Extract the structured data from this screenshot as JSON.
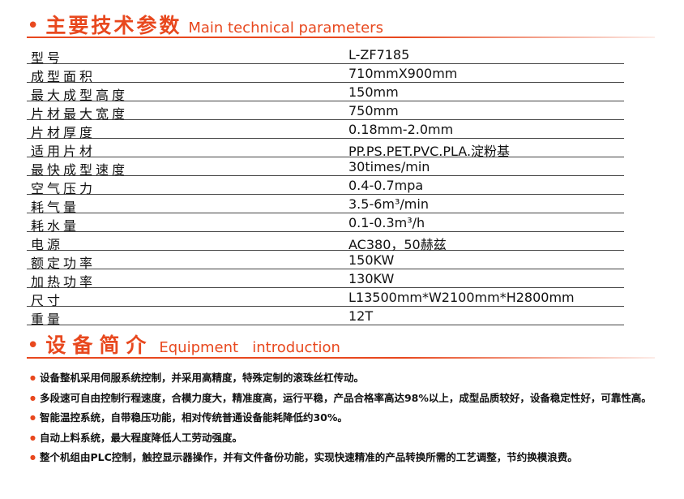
{
  "heading1": {
    "zh": "主要技术参数",
    "en": "Main technical parameters"
  },
  "specs": [
    [
      "型号",
      "L-ZF7185"
    ],
    [
      "成型面积",
      "710mmX900mm"
    ],
    [
      "最大成型高度",
      "150mm"
    ],
    [
      "片材最大宽度",
      "750mm"
    ],
    [
      "片材厚度",
      "0.18mm-2.0mm"
    ],
    [
      "适用片材",
      "PP.PS.PET.PVC.PLA.淀粉基"
    ],
    [
      "最快成型速度",
      "30times/min"
    ],
    [
      "空气压力",
      "0.4-0.7mpa"
    ],
    [
      "耗气量",
      "3.5-6m³/min"
    ],
    [
      "耗水量",
      "0.1-0.3m³/h"
    ],
    [
      "电源",
      "AC380，50赫兹"
    ],
    [
      "额定功率",
      "150KW"
    ],
    [
      "加热功率",
      "130KW"
    ],
    [
      "尺寸",
      "L13500mm*W2100mm*H2800mm"
    ],
    [
      "重量",
      "12T"
    ]
  ],
  "heading2": {
    "zh": "设备简介",
    "en": "Equipment   introduction"
  },
  "bullets": [
    "设备整机采用伺服系统控制，并采用高精度，特殊定制的滚珠丝杠传动。",
    "多段速可自由控制行程速度，合模力度大，精准度高，运行平稳，产品合格率高达98%以上，成型品质较好，设备稳定性好，可靠性高。",
    "智能温控系统，自带稳压功能，相对传统普通设备能耗降低约30%。",
    "自动上料系统，最大程度降低人工劳动强度。",
    "整个机组由PLC控制，触控显示器操作，并有文件备份功能，实现快速精准的产品转换所需的工艺调整，节约换模浪费。"
  ]
}
